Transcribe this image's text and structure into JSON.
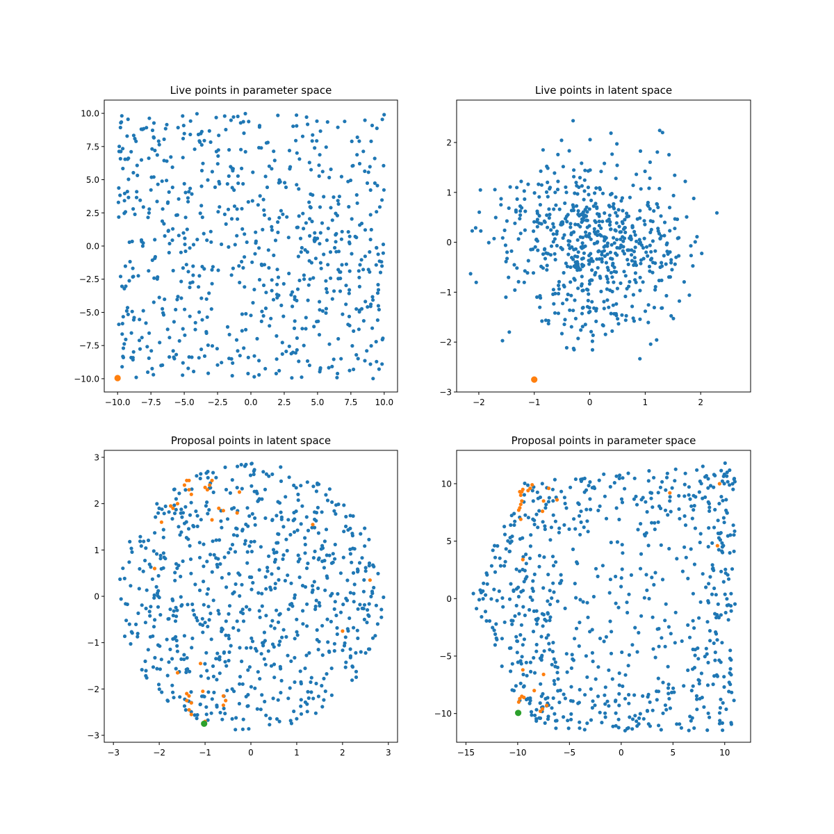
{
  "colors": {
    "live_points": "#1f77b4",
    "highlight_points": "#ff7f0e",
    "start_point": "#2ca02c",
    "axes": "#000000",
    "background": "#ffffff"
  },
  "chart_data": [
    {
      "type": "scatter",
      "title": "Live points in parameter space",
      "xlabel": "",
      "ylabel": "",
      "xlim": [
        -11,
        11
      ],
      "ylim": [
        -11,
        11
      ],
      "xticks": [
        -10.0,
        -7.5,
        -5.0,
        -2.5,
        0.0,
        2.5,
        5.0,
        7.5,
        10.0
      ],
      "xtick_labels": [
        "−10.0",
        "−7.5",
        "−5.0",
        "−2.5",
        "0.0",
        "2.5",
        "5.0",
        "7.5",
        "10.0"
      ],
      "yticks": [
        -10.0,
        -7.5,
        -5.0,
        -2.5,
        0.0,
        2.5,
        5.0,
        7.5,
        10.0
      ],
      "ytick_labels": [
        "−10.0",
        "−7.5",
        "−5.0",
        "−2.5",
        "0.0",
        "2.5",
        "5.0",
        "7.5",
        "10.0"
      ],
      "grid": false,
      "series": [
        {
          "color": "#1f77b4",
          "marker_size": "small",
          "distribution": "uniform-square",
          "count": 700,
          "bounds": [
            -10,
            10,
            -10,
            10
          ]
        },
        {
          "color": "#ff7f0e",
          "marker_size": "large",
          "points": [
            [
              -10.0,
              -9.95
            ]
          ]
        }
      ]
    },
    {
      "type": "scatter",
      "title": "Live points in latent space",
      "xlabel": "",
      "ylabel": "",
      "xlim": [
        -2.4,
        2.9
      ],
      "ylim": [
        -3.0,
        2.85
      ],
      "xticks": [
        -2,
        -1,
        0,
        1,
        2
      ],
      "xtick_labels": [
        "−2",
        "−1",
        "0",
        "1",
        "2"
      ],
      "yticks": [
        -3,
        -2,
        -1,
        0,
        1,
        2
      ],
      "ytick_labels": [
        "−3",
        "−2",
        "−1",
        "0",
        "1",
        "2"
      ],
      "grid": false,
      "series": [
        {
          "color": "#1f77b4",
          "marker_size": "small",
          "distribution": "latent-blob",
          "count": 650
        },
        {
          "color": "#ff7f0e",
          "marker_size": "large",
          "points": [
            [
              -1.0,
              -2.75
            ]
          ]
        }
      ]
    },
    {
      "type": "scatter",
      "title": "Proposal points in latent space",
      "xlabel": "",
      "ylabel": "",
      "xlim": [
        -3.2,
        3.2
      ],
      "ylim": [
        -3.15,
        3.15
      ],
      "xticks": [
        -3,
        -2,
        -1,
        0,
        1,
        2,
        3
      ],
      "xtick_labels": [
        "−3",
        "−2",
        "−1",
        "0",
        "1",
        "2",
        "3"
      ],
      "yticks": [
        -3,
        -2,
        -1,
        0,
        1,
        2,
        3
      ],
      "ytick_labels": [
        "−3",
        "−2",
        "−1",
        "0",
        "1",
        "2",
        "3"
      ],
      "grid": false,
      "series": [
        {
          "color": "#1f77b4",
          "marker_size": "small",
          "distribution": "uniform-disc",
          "count": 750,
          "radius": 2.9
        },
        {
          "color": "#ff7f0e",
          "marker_size": "small",
          "points": [
            [
              -1.45,
              2.4
            ],
            [
              -1.4,
              2.5
            ],
            [
              -1.35,
              2.5
            ],
            [
              -1.35,
              2.3
            ],
            [
              -1.3,
              2.2
            ],
            [
              -1.6,
              2.0
            ],
            [
              -1.7,
              1.9
            ],
            [
              -1.75,
              1.95
            ],
            [
              -1.95,
              1.6
            ],
            [
              -0.85,
              2.5
            ],
            [
              -0.9,
              2.4
            ],
            [
              -1.0,
              2.35
            ],
            [
              -0.95,
              2.3
            ],
            [
              -0.7,
              1.9
            ],
            [
              -0.6,
              1.85
            ],
            [
              -0.85,
              1.65
            ],
            [
              -0.3,
              1.8
            ],
            [
              -0.25,
              2.25
            ],
            [
              1.35,
              1.55
            ],
            [
              -2.1,
              0.6
            ],
            [
              2.6,
              0.35
            ],
            [
              2.0,
              -0.75
            ],
            [
              -1.6,
              -1.65
            ],
            [
              -1.4,
              -2.1
            ],
            [
              -1.35,
              -2.15
            ],
            [
              -1.4,
              -2.25
            ],
            [
              -1.3,
              -2.3
            ],
            [
              -1.35,
              -2.45
            ],
            [
              -1.3,
              -2.55
            ],
            [
              -1.05,
              -2.05
            ],
            [
              -1.1,
              -1.45
            ],
            [
              -0.6,
              -2.15
            ],
            [
              -0.55,
              -2.25
            ],
            [
              -0.6,
              -2.35
            ],
            [
              -1.0,
              -2.7
            ]
          ]
        },
        {
          "color": "#2ca02c",
          "marker_size": "large",
          "points": [
            [
              -1.02,
              -2.75
            ]
          ]
        }
      ]
    },
    {
      "type": "scatter",
      "title": "Proposal points in parameter space",
      "xlabel": "",
      "ylabel": "",
      "xlim": [
        -15.9,
        12.5
      ],
      "ylim": [
        -12.5,
        12.9
      ],
      "xticks": [
        -15,
        -10,
        -5,
        0,
        5,
        10
      ],
      "xtick_labels": [
        "−15",
        "−10",
        "−5",
        "0",
        "5",
        "10"
      ],
      "yticks": [
        -10,
        -5,
        0,
        5,
        10
      ],
      "ytick_labels": [
        "−10",
        "−5",
        "0",
        "5",
        "10"
      ],
      "grid": false,
      "series": [
        {
          "color": "#1f77b4",
          "marker_size": "small",
          "distribution": "proposal-region",
          "count": 750
        },
        {
          "color": "#ff7f0e",
          "marker_size": "small",
          "points": [
            [
              -9.8,
              9.3
            ],
            [
              -9.7,
              9.0
            ],
            [
              -9.6,
              9.3
            ],
            [
              -9.5,
              9.5
            ],
            [
              -9.9,
              7.7
            ],
            [
              -9.8,
              7.9
            ],
            [
              -9.7,
              8.2
            ],
            [
              -9.6,
              8.5
            ],
            [
              -9.0,
              9.4
            ],
            [
              -8.8,
              9.6
            ],
            [
              -8.6,
              9.9
            ],
            [
              -7.0,
              9.6
            ],
            [
              -6.2,
              8.6
            ],
            [
              -7.5,
              8.5
            ],
            [
              -7.6,
              7.6
            ],
            [
              -9.5,
              3.4
            ],
            [
              -9.7,
              6.9
            ],
            [
              -9.5,
              -6.2
            ],
            [
              -7.5,
              -6.6
            ],
            [
              -8.4,
              -8.0
            ],
            [
              -7.2,
              -9.3
            ],
            [
              -7.6,
              -9.6
            ],
            [
              -7.8,
              -9.8
            ],
            [
              -9.9,
              -9.0
            ],
            [
              -9.8,
              -8.7
            ],
            [
              -9.6,
              -8.5
            ],
            [
              -9.4,
              -8.6
            ],
            [
              4.7,
              9.2
            ],
            [
              9.3,
              4.6
            ],
            [
              9.5,
              10.0
            ]
          ]
        },
        {
          "color": "#2ca02c",
          "marker_size": "large",
          "points": [
            [
              -9.95,
              -9.95
            ]
          ]
        }
      ]
    }
  ]
}
